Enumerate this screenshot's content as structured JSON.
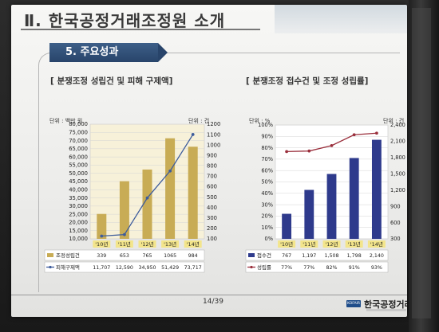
{
  "slide": {
    "title": "Ⅱ. 한국공정거래조정원 소개",
    "section": "5. 주요성과",
    "page": "14/39",
    "logo_badge": "KOFAIR",
    "logo_text": "한국공정거래"
  },
  "colors": {
    "bar_left": "#c8ac55",
    "line_left": "#3d5c9c",
    "bar_right": "#2e3a8c",
    "line_right": "#9a2f3c",
    "section_bg": "#2f4f7a"
  },
  "chart_data": [
    {
      "type": "bar",
      "title": "[ 분쟁조정 성립건 및 피해 구제액]",
      "left_unit": "단위 : 백만 원",
      "right_unit": "단위 : 건",
      "categories": [
        "'10년",
        "'11년",
        "'12년",
        "'13년",
        "'14년"
      ],
      "left_ticks": [
        "80,000",
        "75,000",
        "70,000",
        "65,000",
        "60,000",
        "55,000",
        "50,000",
        "45,000",
        "40,000",
        "35,000",
        "30,000",
        "25,000",
        "20,000",
        "15,000",
        "10,000"
      ],
      "right_ticks": [
        "1200",
        "1100",
        "1000",
        "900",
        "800",
        "700",
        "600",
        "500",
        "400",
        "300",
        "200",
        "100"
      ],
      "left_axis": [
        10000,
        80000
      ],
      "right_axis": [
        100,
        1200
      ],
      "series": [
        {
          "name": "조정성립건",
          "kind": "bar",
          "axis": "right",
          "values": [
            339,
            653,
            765,
            1065,
            984
          ],
          "labels": [
            "339",
            "653",
            "765",
            "1065",
            "984"
          ]
        },
        {
          "name": "피해구제액",
          "kind": "line",
          "axis": "left",
          "values": [
            11707,
            12590,
            34950,
            51429,
            73717
          ],
          "labels": [
            "11,707",
            "12,590",
            "34,950",
            "51,429",
            "73,717"
          ]
        }
      ]
    },
    {
      "type": "bar",
      "title": "[ 분쟁조정 접수건 및 조정 성립률]",
      "left_unit": "단위 : %",
      "right_unit": "단위 : 건",
      "categories": [
        "'10년",
        "'11년",
        "'12년",
        "'13년",
        "'14년"
      ],
      "left_ticks": [
        "100%",
        "90%",
        "80%",
        "70%",
        "60%",
        "50%",
        "40%",
        "30%",
        "20%",
        "10%",
        "0%"
      ],
      "right_ticks": [
        "2,400",
        "2,100",
        "1,800",
        "1,500",
        "1,200",
        "900",
        "600",
        "300"
      ],
      "left_axis": [
        0,
        100
      ],
      "right_axis": [
        300,
        2400
      ],
      "series": [
        {
          "name": "접수건",
          "kind": "bar",
          "axis": "left",
          "values": [
            22,
            43,
            57,
            71,
            87
          ],
          "labels": [
            "767",
            "1,197",
            "1,508",
            "1,798",
            "2,140"
          ]
        },
        {
          "name": "성립률",
          "kind": "line",
          "axis": "right",
          "values": [
            1910,
            1920,
            2020,
            2220,
            2250
          ],
          "labels": [
            "77%",
            "77%",
            "82%",
            "91%",
            "93%"
          ]
        }
      ]
    }
  ]
}
